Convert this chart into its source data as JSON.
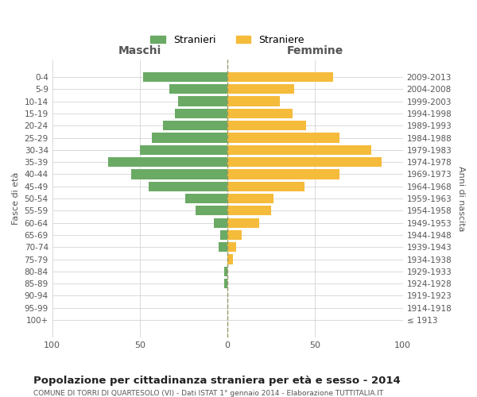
{
  "age_groups": [
    "100+",
    "95-99",
    "90-94",
    "85-89",
    "80-84",
    "75-79",
    "70-74",
    "65-69",
    "60-64",
    "55-59",
    "50-54",
    "45-49",
    "40-44",
    "35-39",
    "30-34",
    "25-29",
    "20-24",
    "15-19",
    "10-14",
    "5-9",
    "0-4"
  ],
  "birth_years": [
    "≤ 1913",
    "1914-1918",
    "1919-1923",
    "1924-1928",
    "1929-1933",
    "1934-1938",
    "1939-1943",
    "1944-1948",
    "1949-1953",
    "1954-1958",
    "1959-1963",
    "1964-1968",
    "1969-1973",
    "1974-1978",
    "1979-1983",
    "1984-1988",
    "1989-1993",
    "1994-1998",
    "1999-2003",
    "2004-2008",
    "2009-2013"
  ],
  "males": [
    0,
    0,
    0,
    2,
    2,
    0,
    5,
    4,
    8,
    18,
    24,
    45,
    55,
    68,
    50,
    43,
    37,
    30,
    28,
    33,
    48
  ],
  "females": [
    0,
    0,
    0,
    0,
    0,
    3,
    5,
    8,
    18,
    25,
    26,
    44,
    64,
    88,
    82,
    64,
    45,
    37,
    30,
    38,
    60
  ],
  "male_color": "#6aaa64",
  "female_color": "#f5bb3a",
  "background_color": "#ffffff",
  "grid_color": "#cccccc",
  "title": "Popolazione per cittadinanza straniera per età e sesso - 2014",
  "subtitle": "COMUNE DI TORRI DI QUARTESOLO (VI) - Dati ISTAT 1° gennaio 2014 - Elaborazione TUTTITALIA.IT",
  "xlabel_left": "Maschi",
  "xlabel_right": "Femmine",
  "ylabel_left": "Fasce di età",
  "ylabel_right": "Anni di nascita",
  "legend_male": "Stranieri",
  "legend_female": "Straniere",
  "xlim": 100,
  "bar_height": 0.8
}
